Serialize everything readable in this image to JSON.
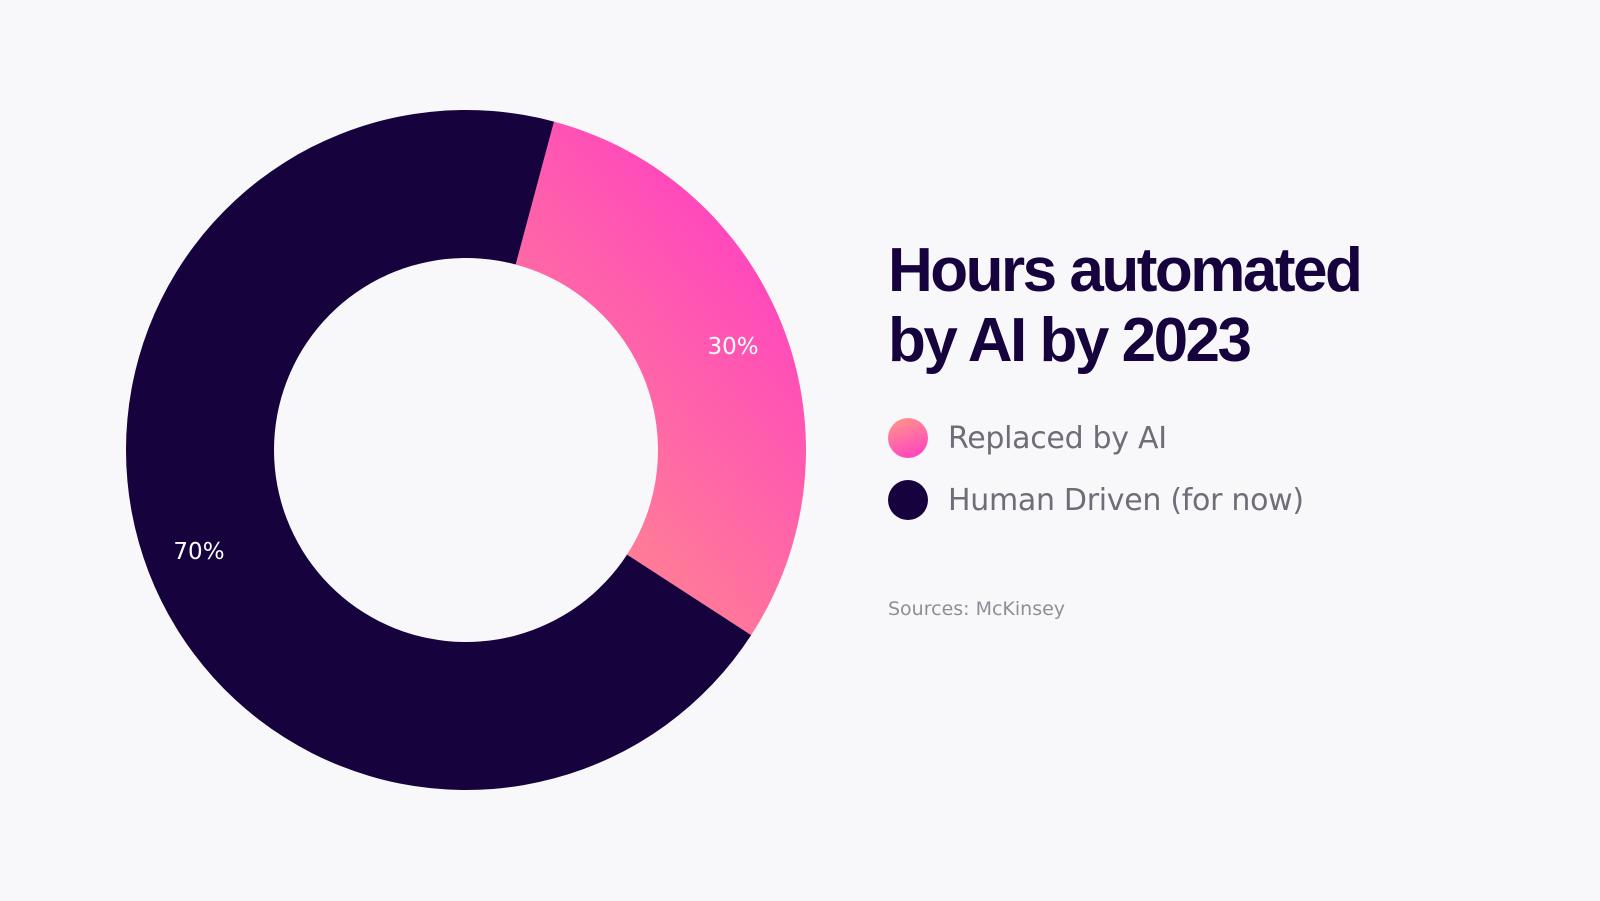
{
  "chart_data": {
    "type": "pie",
    "variant": "donut",
    "title": "Hours automated by AI by 2023",
    "title_lines": [
      "Hours automated",
      "by AI by 2023"
    ],
    "slices": [
      {
        "name": "Replaced by AI",
        "value": 30,
        "label": "30%",
        "gradient": [
          "#ff8491",
          "#ff3bc6"
        ]
      },
      {
        "name": "Human Driven (for now)",
        "value": 70,
        "label": "70%",
        "color": "#16023d"
      }
    ],
    "legend": [
      "Replaced by AI",
      "Human Driven (for now)"
    ],
    "source": "Sources: McKinsey"
  },
  "colors": {
    "background": "#f8f8fb",
    "dark": "#16023d",
    "pink": "#ff3bc6",
    "coral": "#ff8491",
    "legend_text": "#6e6e78",
    "source_text": "#8e8e96"
  }
}
